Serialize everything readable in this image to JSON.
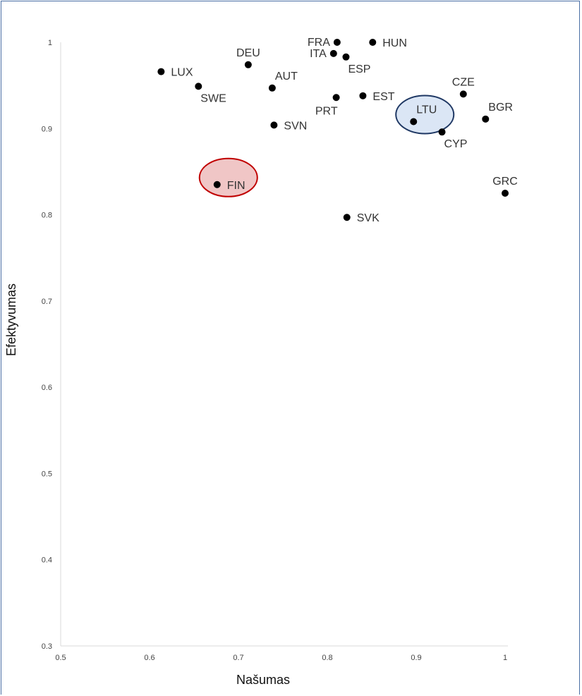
{
  "chart_data": {
    "type": "scatter",
    "xlabel": "Našumas",
    "ylabel": "Efektyvumas",
    "xlim": [
      0.5,
      1
    ],
    "ylim": [
      0.3,
      1
    ],
    "xticks": [
      "0.5",
      "0.6",
      "0.7",
      "0.8",
      "0.9",
      "1"
    ],
    "yticks": [
      "0.3",
      "0.4",
      "0.5",
      "0.6",
      "0.7",
      "0.8",
      "0.9",
      "1"
    ],
    "grid": false,
    "points": [
      {
        "label": "FRA",
        "x": 0.811,
        "y": 1.0,
        "pos": "left"
      },
      {
        "label": "HUN",
        "x": 0.851,
        "y": 1.0,
        "pos": "right"
      },
      {
        "label": "ITA",
        "x": 0.807,
        "y": 0.987,
        "pos": "left"
      },
      {
        "label": "ESP",
        "x": 0.821,
        "y": 0.983,
        "pos": "below-right"
      },
      {
        "label": "DEU",
        "x": 0.711,
        "y": 0.974,
        "pos": "above"
      },
      {
        "label": "LUX",
        "x": 0.613,
        "y": 0.966,
        "pos": "right"
      },
      {
        "label": "SWE",
        "x": 0.655,
        "y": 0.949,
        "pos": "below-right"
      },
      {
        "label": "AUT",
        "x": 0.738,
        "y": 0.947,
        "pos": "above-right"
      },
      {
        "label": "CZE",
        "x": 0.953,
        "y": 0.94,
        "pos": "above"
      },
      {
        "label": "EST",
        "x": 0.84,
        "y": 0.938,
        "pos": "right"
      },
      {
        "label": "PRT",
        "x": 0.81,
        "y": 0.936,
        "pos": "below-left"
      },
      {
        "label": "BGR",
        "x": 0.978,
        "y": 0.911,
        "pos": "above-right"
      },
      {
        "label": "LTU",
        "x": 0.897,
        "y": 0.908,
        "pos": "above-right"
      },
      {
        "label": "SVN",
        "x": 0.74,
        "y": 0.904,
        "pos": "right"
      },
      {
        "label": "CYP",
        "x": 0.929,
        "y": 0.896,
        "pos": "below-right"
      },
      {
        "label": "FIN",
        "x": 0.676,
        "y": 0.835,
        "pos": "right"
      },
      {
        "label": "GRC",
        "x": 1.0,
        "y": 0.825,
        "pos": "above"
      },
      {
        "label": "SVK",
        "x": 0.822,
        "y": 0.797,
        "pos": "right"
      }
    ],
    "highlights": [
      {
        "label": "LTU",
        "fill": "#dbe6f5",
        "stroke": "#1f3864"
      },
      {
        "label": "FIN",
        "fill": "#f0c6c6",
        "stroke": "#c00000"
      }
    ]
  }
}
